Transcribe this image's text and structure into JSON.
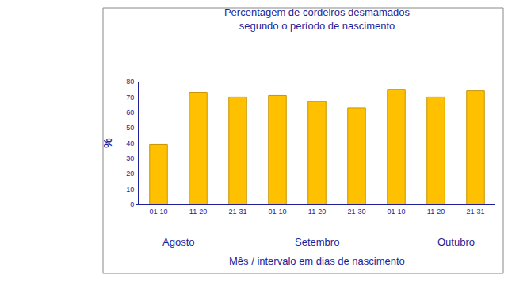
{
  "chart_data": {
    "type": "bar",
    "title": "Percentagem de cordeiros desmamados",
    "subtitle": "segundo o período de nascimento",
    "x_label": "Mês / intervalo em dias de nascimento",
    "y_label": "%",
    "categories": [
      "01-10",
      "11-20",
      "21-31",
      "01-10",
      "11-20",
      "21-30",
      "01-10",
      "11-20",
      "21-31"
    ],
    "values": [
      39,
      73,
      70,
      71,
      67,
      63,
      75,
      70,
      74
    ],
    "color": "#ffc000",
    "ylim": [
      0,
      80
    ],
    "yticks": [
      0,
      10,
      20,
      30,
      40,
      50,
      60,
      70,
      80
    ],
    "grid": true,
    "annotations": [
      {
        "text": "Agosto",
        "at": 0.5
      },
      {
        "text": "Setembro",
        "at": 4
      },
      {
        "text": "Outubro",
        "at": 7.5
      }
    ]
  }
}
